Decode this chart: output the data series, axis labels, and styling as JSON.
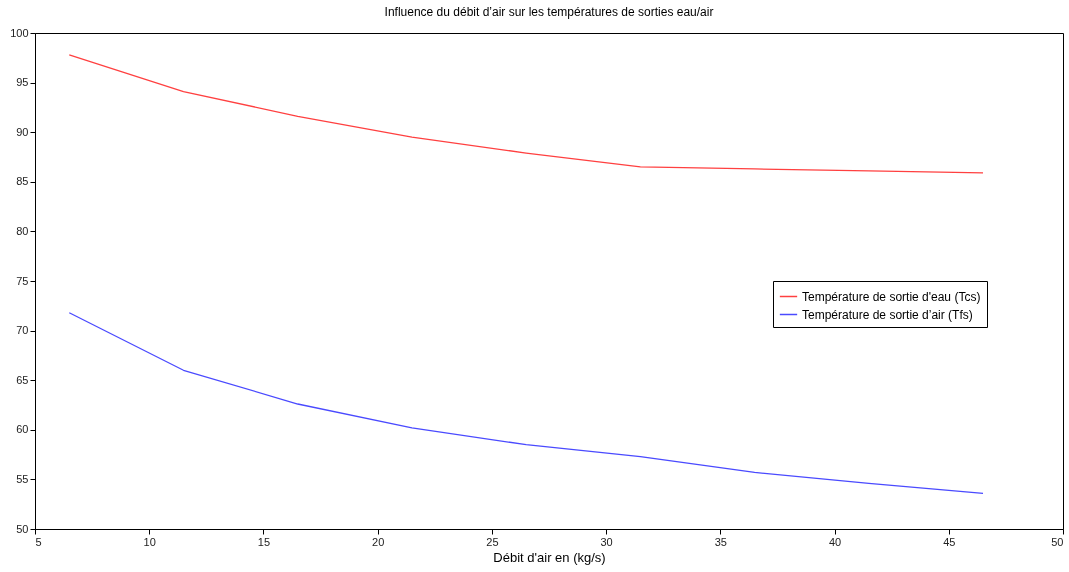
{
  "chart_data": {
    "type": "line",
    "title": "Influence du débit d’air sur les températures de sorties eau/air",
    "xlabel": "Débit d'air en (kg/s)",
    "x": [
      6.5,
      11.5,
      16.5,
      21.5,
      26.5,
      31.5,
      36.5,
      41.5,
      46.5
    ],
    "series": [
      {
        "name": "Température de sortie d'eau (Tcs)",
        "color": "#ff4040",
        "values": [
          97.8,
          94.1,
          91.6,
          89.5,
          87.9,
          86.5,
          86.3,
          86.1,
          85.9
        ]
      },
      {
        "name": "Température de sortie d’air (Tfs)",
        "color": "#4a4aff",
        "values": [
          71.8,
          66.0,
          62.6,
          60.2,
          58.5,
          57.3,
          55.7,
          54.6,
          53.6
        ]
      }
    ],
    "xlim": [
      5,
      50
    ],
    "xticks": [
      5,
      10,
      15,
      20,
      25,
      30,
      35,
      40,
      45,
      50
    ],
    "ylim": [
      50,
      100
    ],
    "yticks": [
      50,
      55,
      60,
      65,
      70,
      75,
      80,
      85,
      90,
      95,
      100
    ],
    "grid": false,
    "legend": "right"
  }
}
